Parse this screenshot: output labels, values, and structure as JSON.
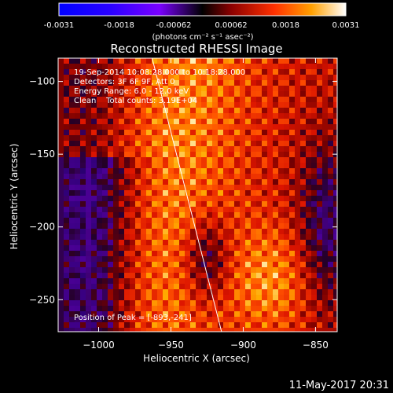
{
  "colorbar": {
    "tick_labels": [
      "-0.0031",
      "-0.0018",
      "-0.00062",
      "0.00062",
      "0.0018",
      "0.0031"
    ],
    "units_label": "(photons cm⁻² s⁻¹ asec⁻²)",
    "range": [
      -0.0031,
      0.0031
    ]
  },
  "chart_data": {
    "type": "heatmap",
    "title": "Reconstructed RHESSI Image",
    "xlabel": "Heliocentric X (arcsec)",
    "ylabel": "Heliocentric Y (arcsec)",
    "xlim": [
      -1028,
      -835
    ],
    "ylim": [
      -272,
      -84
    ],
    "x_ticks": [
      -1000,
      -950,
      -900,
      -850
    ],
    "y_ticks": [
      -100,
      -150,
      -200,
      -250
    ],
    "x_tick_labels": [
      "−1000",
      "−950",
      "−900",
      "−850"
    ],
    "y_tick_labels": [
      "−100",
      "−150",
      "−200",
      "−250"
    ],
    "info_lines": [
      "19-Sep-2014 10:08:28.000 to 10:18:28.000",
      "Detectors: 3F 6F 9F, Att 0",
      "Energy Range: 6.0 - 12.0 keV",
      "Clean    Total counts: 3.19E+04"
    ],
    "peak_label": "Position of Peak = [-893,-241]",
    "peak_position": [
      -893,
      -241
    ],
    "limb_line": [
      [
        -963,
        -84
      ],
      [
        -915,
        -272
      ]
    ]
  },
  "footer": {
    "timestamp": "11-May-2017 20:31"
  }
}
